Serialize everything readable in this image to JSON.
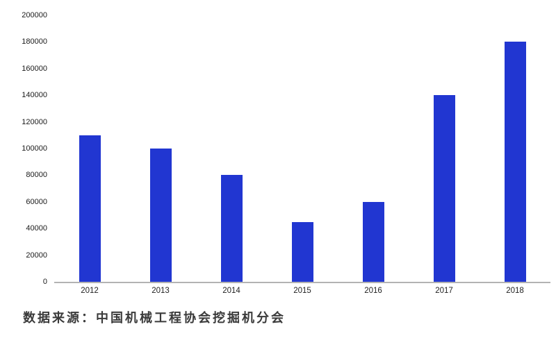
{
  "chart_data": {
    "type": "bar",
    "categories": [
      "2012",
      "2013",
      "2014",
      "2015",
      "2016",
      "2017",
      "2018"
    ],
    "values": [
      110000,
      100000,
      80000,
      45000,
      60000,
      140000,
      180000
    ],
    "title": "",
    "xlabel": "",
    "ylabel": "",
    "ylim": [
      0,
      200000
    ],
    "ytick_step": 20000,
    "yticks": [
      0,
      20000,
      40000,
      60000,
      80000,
      100000,
      120000,
      140000,
      160000,
      180000,
      200000
    ],
    "grid": false,
    "legend": false,
    "bar_color": "#2136d1",
    "axis_color": "#b3b3b3"
  },
  "source_note": "数据来源：中国机械工程协会挖掘机分会"
}
